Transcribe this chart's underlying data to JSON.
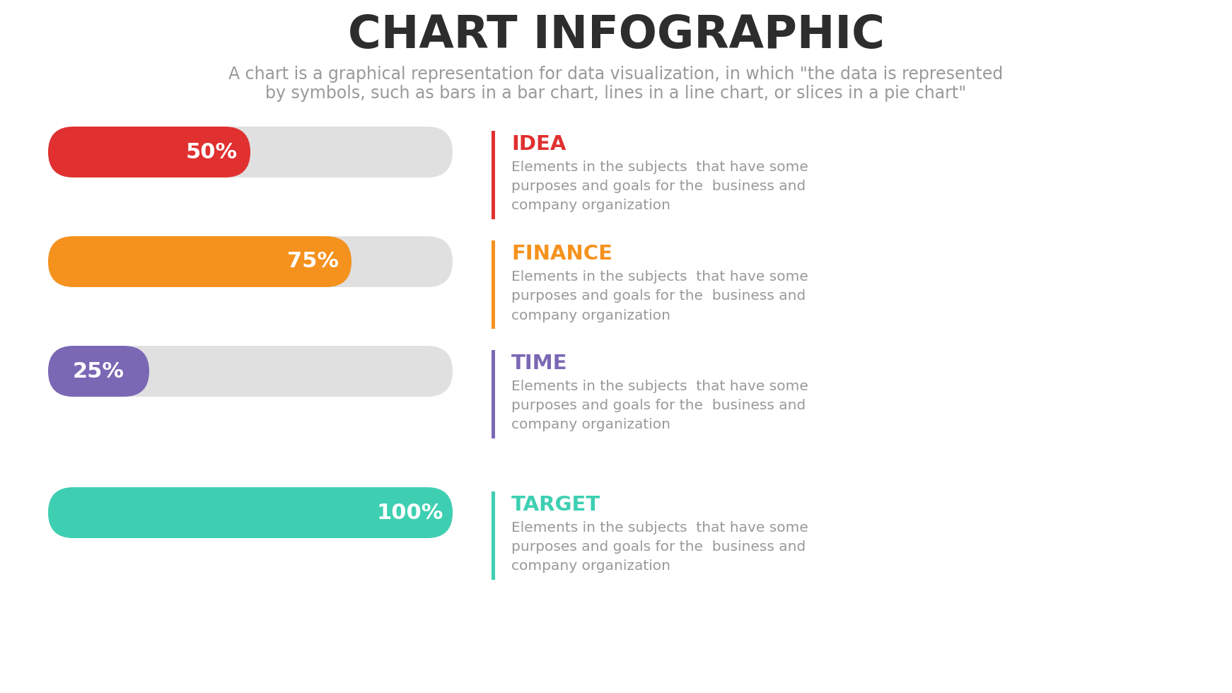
{
  "title": "CHART INFOGRAPHIC",
  "subtitle_line1": "A chart is a graphical representation for data visualization, in which \"the data is represented",
  "subtitle_line2": "by symbols, such as bars in a bar chart, lines in a line chart, or slices in a pie chart\"",
  "background_color": "#ffffff",
  "title_color": "#2d2d2d",
  "subtitle_color": "#999999",
  "bars": [
    {
      "label": "50%",
      "value": 50,
      "color": "#e03030",
      "bg_color": "#e0e0e0"
    },
    {
      "label": "75%",
      "value": 75,
      "color": "#f5921e",
      "bg_color": "#e0e0e0"
    },
    {
      "label": "25%",
      "value": 25,
      "color": "#7b68b5",
      "bg_color": "#e0e0e0"
    },
    {
      "label": "100%",
      "value": 100,
      "color": "#3ecfb2",
      "bg_color": "#e0e0e0"
    }
  ],
  "items": [
    {
      "heading": "IDEA",
      "heading_color": "#e03030",
      "bar_color": "#e03030",
      "body": "Elements in the subjects  that have some\npurposes and goals for the  business and\ncompany organization",
      "body_color": "#999999"
    },
    {
      "heading": "FINANCE",
      "heading_color": "#f5921e",
      "bar_color": "#f5921e",
      "body": "Elements in the subjects  that have some\npurposes and goals for the  business and\ncompany organization",
      "body_color": "#999999"
    },
    {
      "heading": "TIME",
      "heading_color": "#7b68b5",
      "bar_color": "#7b68b5",
      "body": "Elements in the subjects  that have some\npurposes and goals for the  business and\ncompany organization",
      "body_color": "#999999"
    },
    {
      "heading": "TARGET",
      "heading_color": "#3ecfb2",
      "bar_color": "#3ecfb2",
      "body": "Elements in the subjects  that have some\npurposes and goals for the  business and\ncompany organization",
      "body_color": "#999999"
    }
  ]
}
